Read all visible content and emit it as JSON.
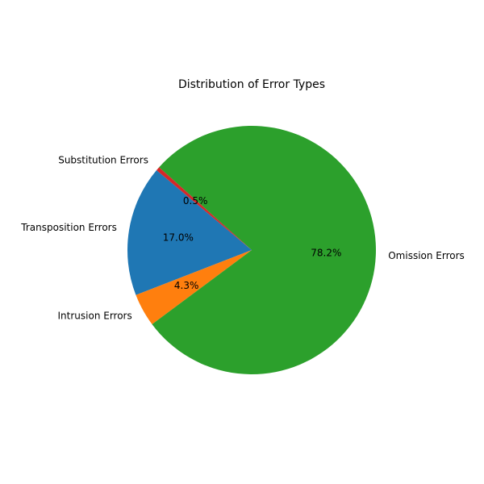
{
  "chart_data": {
    "type": "pie",
    "title": "Distribution of Error Types",
    "categories": [
      "Transposition Errors",
      "Intrusion Errors",
      "Omission Errors",
      "Substitution Errors"
    ],
    "values": [
      17.0,
      4.3,
      78.2,
      0.5
    ],
    "percent_labels": [
      "17.0%",
      "4.3%",
      "78.2%",
      "0.5%"
    ],
    "colors": [
      "#1f77b4",
      "#ff7f0e",
      "#2ca02c",
      "#d62728"
    ],
    "start_angle_deg": 140,
    "direction": "counterclockwise",
    "legend": "none"
  }
}
